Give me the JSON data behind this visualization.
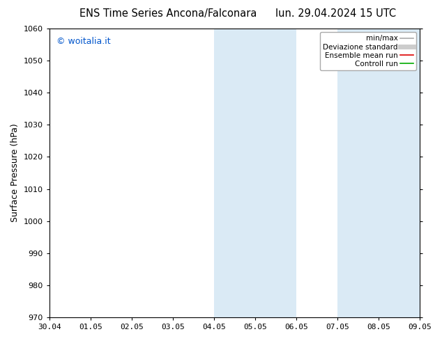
{
  "title_left": "ENS Time Series Ancona/Falconara",
  "title_right": "lun. 29.04.2024 15 UTC",
  "ylabel": "Surface Pressure (hPa)",
  "ylim": [
    970,
    1060
  ],
  "yticks": [
    970,
    980,
    990,
    1000,
    1010,
    1020,
    1030,
    1040,
    1050,
    1060
  ],
  "xtick_labels": [
    "30.04",
    "01.05",
    "02.05",
    "03.05",
    "04.05",
    "05.05",
    "06.05",
    "07.05",
    "08.05",
    "09.05"
  ],
  "shaded_regions": [
    {
      "xstart": 4,
      "xend": 6,
      "color": "#daeaf5"
    },
    {
      "xstart": 7,
      "xend": 9,
      "color": "#daeaf5"
    }
  ],
  "copyright_text": "© woitalia.it",
  "copyright_color": "#0055cc",
  "legend_entries": [
    {
      "label": "min/max",
      "color": "#aaaaaa",
      "lw": 1.2,
      "style": "-"
    },
    {
      "label": "Deviazione standard",
      "color": "#cccccc",
      "lw": 5,
      "style": "-"
    },
    {
      "label": "Ensemble mean run",
      "color": "#dd0000",
      "lw": 1.2,
      "style": "-"
    },
    {
      "label": "Controll run",
      "color": "#00aa00",
      "lw": 1.2,
      "style": "-"
    }
  ],
  "background_color": "#ffffff",
  "title_fontsize": 10.5,
  "ylabel_fontsize": 9,
  "tick_fontsize": 8,
  "legend_fontsize": 7.5,
  "copyright_fontsize": 9
}
